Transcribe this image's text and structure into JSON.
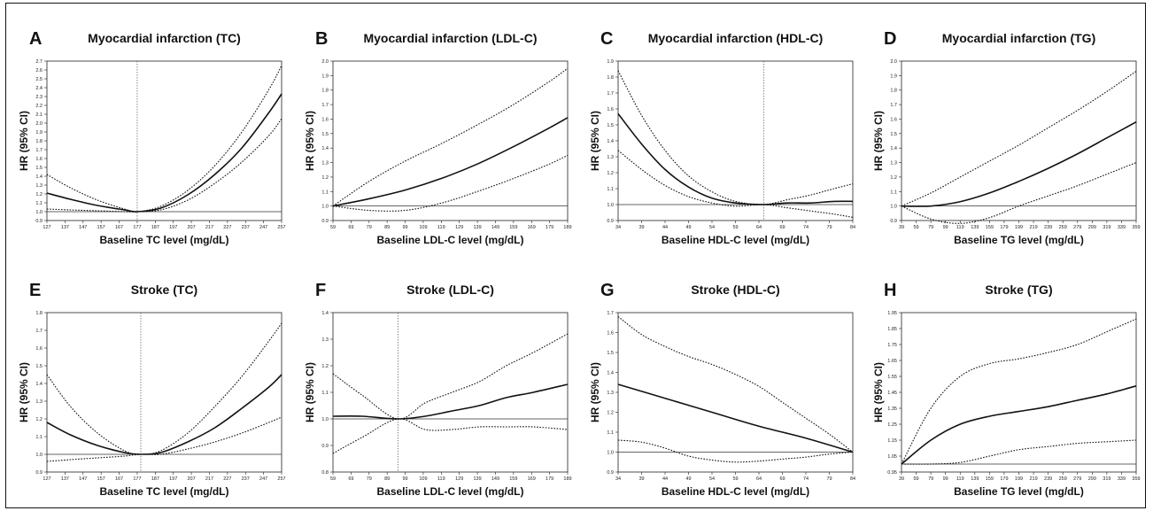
{
  "figure": {
    "panels": [
      {
        "letter": "A",
        "title": "Myocardial infarction (TC)"
      },
      {
        "letter": "B",
        "title": "Myocardial infarction (LDL-C)"
      },
      {
        "letter": "C",
        "title": "Myocardial infarction (HDL-C)"
      },
      {
        "letter": "D",
        "title": "Myocardial infarction (TG)"
      },
      {
        "letter": "E",
        "title": "Stroke (TC)"
      },
      {
        "letter": "F",
        "title": "Stroke (LDL-C)"
      },
      {
        "letter": "G",
        "title": "Stroke (HDL-C)"
      },
      {
        "letter": "H",
        "title": "Stroke (TG)"
      }
    ]
  },
  "chart_data": [
    {
      "type": "line",
      "letter": "A",
      "title": "Myocardial infarction (TC)",
      "xlabel": "Baseline TC level (mg/dL)",
      "ylabel": "HR (95% CI)",
      "xticks": [
        127,
        137,
        147,
        157,
        167,
        177,
        187,
        197,
        207,
        217,
        227,
        237,
        247,
        257
      ],
      "yticks": [
        0.9,
        1.0,
        1.1,
        1.2,
        1.3,
        1.4,
        1.5,
        1.6,
        1.7,
        1.8,
        1.9,
        2.0,
        2.1,
        2.2,
        2.3,
        2.4,
        2.5,
        2.6,
        2.7
      ],
      "xlim": [
        127,
        257
      ],
      "ylim": [
        0.9,
        2.7
      ],
      "reference_line": 1.0,
      "reference_x": 177,
      "series": [
        {
          "role": "estimate",
          "x": [
            127,
            140,
            155,
            170,
            177,
            190,
            205,
            220,
            235,
            250,
            257
          ],
          "y": [
            1.21,
            1.14,
            1.07,
            1.02,
            1.0,
            1.04,
            1.19,
            1.42,
            1.72,
            2.12,
            2.33
          ]
        },
        {
          "role": "upper",
          "x": [
            127,
            140,
            155,
            170,
            177,
            190,
            205,
            220,
            235,
            250,
            257
          ],
          "y": [
            1.42,
            1.27,
            1.13,
            1.03,
            1.0,
            1.06,
            1.24,
            1.52,
            1.9,
            2.38,
            2.65
          ]
        },
        {
          "role": "lower",
          "x": [
            127,
            140,
            155,
            170,
            177,
            190,
            205,
            220,
            235,
            250,
            257
          ],
          "y": [
            1.03,
            1.02,
            1.01,
            1.0,
            1.0,
            1.02,
            1.13,
            1.32,
            1.56,
            1.86,
            2.05
          ]
        }
      ]
    },
    {
      "type": "line",
      "letter": "B",
      "title": "Myocardial infarction (LDL-C)",
      "xlabel": "Baseline LDL-C level (mg/dL)",
      "ylabel": "HR (95% CI)",
      "xticks": [
        59,
        69,
        79,
        89,
        99,
        109,
        119,
        129,
        139,
        149,
        159,
        169,
        179,
        189
      ],
      "yticks": [
        0.9,
        1.0,
        1.1,
        1.2,
        1.3,
        1.4,
        1.5,
        1.6,
        1.7,
        1.8,
        1.9,
        2.0
      ],
      "xlim": [
        59,
        189
      ],
      "ylim": [
        0.9,
        2.0
      ],
      "reference_line": 1.0,
      "series": [
        {
          "role": "estimate",
          "x": [
            59,
            79,
            99,
            119,
            139,
            159,
            179,
            189
          ],
          "y": [
            1.0,
            1.05,
            1.11,
            1.19,
            1.29,
            1.41,
            1.54,
            1.61
          ]
        },
        {
          "role": "upper",
          "x": [
            59,
            79,
            99,
            119,
            139,
            159,
            179,
            189
          ],
          "y": [
            1.0,
            1.17,
            1.31,
            1.43,
            1.56,
            1.7,
            1.86,
            1.95
          ]
        },
        {
          "role": "lower",
          "x": [
            59,
            79,
            99,
            119,
            139,
            159,
            179,
            189
          ],
          "y": [
            1.0,
            0.97,
            0.97,
            1.02,
            1.1,
            1.19,
            1.29,
            1.35
          ]
        }
      ]
    },
    {
      "type": "line",
      "letter": "C",
      "title": "Myocardial infarction (HDL-C)",
      "xlabel": "Baseline HDL-C level (mg/dL)",
      "ylabel": "HR (95% CI)",
      "xticks": [
        34,
        39,
        44,
        49,
        54,
        59,
        64,
        69,
        74,
        79,
        84
      ],
      "yticks": [
        0.9,
        1.0,
        1.1,
        1.2,
        1.3,
        1.4,
        1.5,
        1.6,
        1.7,
        1.8,
        1.9
      ],
      "xlim": [
        34,
        84
      ],
      "ylim": [
        0.9,
        1.9
      ],
      "reference_line": 1.0,
      "reference_x": 65,
      "series": [
        {
          "role": "estimate",
          "x": [
            34,
            39,
            44,
            49,
            54,
            59,
            65,
            70,
            75,
            80,
            84
          ],
          "y": [
            1.57,
            1.38,
            1.22,
            1.11,
            1.04,
            1.01,
            1.0,
            1.01,
            1.01,
            1.02,
            1.02
          ]
        },
        {
          "role": "upper",
          "x": [
            34,
            39,
            44,
            49,
            54,
            59,
            65,
            70,
            75,
            80,
            84
          ],
          "y": [
            1.84,
            1.56,
            1.34,
            1.18,
            1.08,
            1.02,
            1.0,
            1.03,
            1.06,
            1.1,
            1.13
          ]
        },
        {
          "role": "lower",
          "x": [
            34,
            39,
            44,
            49,
            54,
            59,
            65,
            70,
            75,
            80,
            84
          ],
          "y": [
            1.34,
            1.22,
            1.12,
            1.05,
            1.01,
            0.99,
            1.0,
            0.98,
            0.96,
            0.94,
            0.92
          ]
        }
      ]
    },
    {
      "type": "line",
      "letter": "D",
      "title": "Myocardial infarction (TG)",
      "xlabel": "Baseline TG level (mg/dL)",
      "ylabel": "HR (95% CI)",
      "xticks": [
        39,
        59,
        79,
        99,
        119,
        139,
        159,
        179,
        199,
        219,
        239,
        259,
        279,
        299,
        319,
        339,
        359
      ],
      "yticks": [
        0.9,
        1.0,
        1.1,
        1.2,
        1.3,
        1.4,
        1.5,
        1.6,
        1.7,
        1.8,
        1.9,
        2.0
      ],
      "xlim": [
        39,
        359
      ],
      "ylim": [
        0.9,
        2.0
      ],
      "reference_line": 1.0,
      "series": [
        {
          "role": "estimate",
          "x": [
            39,
            79,
            119,
            159,
            199,
            239,
            279,
            319,
            359
          ],
          "y": [
            1.0,
            1.0,
            1.03,
            1.09,
            1.17,
            1.26,
            1.36,
            1.47,
            1.58
          ]
        },
        {
          "role": "upper",
          "x": [
            39,
            79,
            119,
            159,
            199,
            239,
            279,
            319,
            359
          ],
          "y": [
            1.0,
            1.09,
            1.2,
            1.31,
            1.42,
            1.54,
            1.66,
            1.79,
            1.93
          ]
        },
        {
          "role": "lower",
          "x": [
            39,
            79,
            119,
            159,
            199,
            239,
            279,
            319,
            359
          ],
          "y": [
            1.0,
            0.91,
            0.88,
            0.92,
            1.0,
            1.07,
            1.14,
            1.22,
            1.3
          ]
        }
      ]
    },
    {
      "type": "line",
      "letter": "E",
      "title": "Stroke (TC)",
      "xlabel": "Baseline TC level (mg/dL)",
      "ylabel": "HR (95% CI)",
      "xticks": [
        127,
        137,
        147,
        157,
        167,
        177,
        187,
        197,
        207,
        217,
        227,
        237,
        247,
        257
      ],
      "yticks": [
        0.9,
        1.0,
        1.1,
        1.2,
        1.3,
        1.4,
        1.5,
        1.6,
        1.7,
        1.8
      ],
      "xlim": [
        127,
        257
      ],
      "ylim": [
        0.9,
        1.8
      ],
      "reference_line": 1.0,
      "reference_x": 179,
      "series": [
        {
          "role": "estimate",
          "x": [
            127,
            140,
            155,
            170,
            179,
            190,
            205,
            220,
            235,
            250,
            257
          ],
          "y": [
            1.18,
            1.11,
            1.05,
            1.01,
            1.0,
            1.01,
            1.07,
            1.15,
            1.26,
            1.38,
            1.45
          ]
        },
        {
          "role": "upper",
          "x": [
            127,
            140,
            155,
            170,
            179,
            190,
            205,
            220,
            235,
            250,
            257
          ],
          "y": [
            1.45,
            1.27,
            1.12,
            1.02,
            1.0,
            1.02,
            1.12,
            1.27,
            1.44,
            1.64,
            1.74
          ]
        },
        {
          "role": "lower",
          "x": [
            127,
            140,
            155,
            170,
            179,
            190,
            205,
            220,
            235,
            250,
            257
          ],
          "y": [
            0.96,
            0.97,
            0.98,
            0.99,
            1.0,
            1.0,
            1.03,
            1.07,
            1.12,
            1.18,
            1.21
          ]
        }
      ]
    },
    {
      "type": "line",
      "letter": "F",
      "title": "Stroke (LDL-C)",
      "xlabel": "Baseline LDL-C level (mg/dL)",
      "ylabel": "HR (95% CI)",
      "xticks": [
        59,
        69,
        79,
        89,
        99,
        109,
        119,
        129,
        139,
        149,
        159,
        169,
        179,
        189
      ],
      "yticks": [
        0.8,
        0.9,
        1.0,
        1.1,
        1.2,
        1.3,
        1.4
      ],
      "xlim": [
        59,
        189
      ],
      "ylim": [
        0.8,
        1.4
      ],
      "reference_line": 1.0,
      "reference_x": 95,
      "series": [
        {
          "role": "estimate",
          "x": [
            59,
            75,
            95,
            110,
            125,
            140,
            155,
            170,
            189
          ],
          "y": [
            1.01,
            1.01,
            1.0,
            1.01,
            1.03,
            1.05,
            1.08,
            1.1,
            1.13
          ]
        },
        {
          "role": "upper",
          "x": [
            59,
            75,
            95,
            110,
            125,
            140,
            155,
            170,
            189
          ],
          "y": [
            1.17,
            1.09,
            1.0,
            1.06,
            1.1,
            1.14,
            1.2,
            1.25,
            1.32
          ]
        },
        {
          "role": "lower",
          "x": [
            59,
            75,
            95,
            110,
            125,
            140,
            155,
            170,
            189
          ],
          "y": [
            0.87,
            0.93,
            1.0,
            0.96,
            0.96,
            0.97,
            0.97,
            0.97,
            0.96
          ]
        }
      ]
    },
    {
      "type": "line",
      "letter": "G",
      "title": "Stroke (HDL-C)",
      "xlabel": "Baseline HDL-C level (mg/dL)",
      "ylabel": "HR (95% CI)",
      "xticks": [
        34,
        39,
        44,
        49,
        54,
        59,
        64,
        69,
        74,
        79,
        84
      ],
      "yticks": [
        0.9,
        1.0,
        1.1,
        1.2,
        1.3,
        1.4,
        1.5,
        1.6,
        1.7
      ],
      "xlim": [
        34,
        84
      ],
      "ylim": [
        0.9,
        1.7
      ],
      "reference_line": 1.0,
      "reference_x": 84,
      "series": [
        {
          "role": "estimate",
          "x": [
            34,
            44,
            54,
            64,
            74,
            84
          ],
          "y": [
            1.34,
            1.27,
            1.2,
            1.13,
            1.07,
            1.0
          ]
        },
        {
          "role": "upper",
          "x": [
            34,
            39,
            44,
            49,
            54,
            59,
            64,
            69,
            74,
            79,
            84
          ],
          "y": [
            1.68,
            1.59,
            1.53,
            1.48,
            1.44,
            1.39,
            1.33,
            1.25,
            1.17,
            1.09,
            1.0
          ]
        },
        {
          "role": "lower",
          "x": [
            34,
            39,
            44,
            49,
            54,
            59,
            64,
            69,
            74,
            79,
            84
          ],
          "y": [
            1.06,
            1.05,
            1.02,
            0.98,
            0.96,
            0.95,
            0.955,
            0.965,
            0.975,
            0.99,
            1.0
          ]
        }
      ]
    },
    {
      "type": "line",
      "letter": "H",
      "title": "Stroke (TG)",
      "xlabel": "Baseline TG level (mg/dL)",
      "ylabel": "HR (95% CI)",
      "xticks": [
        39,
        59,
        79,
        99,
        119,
        139,
        159,
        179,
        199,
        219,
        239,
        259,
        279,
        299,
        319,
        339,
        359
      ],
      "yticks": [
        0.95,
        1.05,
        1.15,
        1.25,
        1.35,
        1.45,
        1.55,
        1.65,
        1.75,
        1.85,
        1.95
      ],
      "xlim": [
        39,
        359
      ],
      "ylim": [
        0.95,
        1.95
      ],
      "reference_line": 1.0,
      "series": [
        {
          "role": "estimate",
          "x": [
            39,
            79,
            119,
            159,
            199,
            239,
            279,
            319,
            359
          ],
          "y": [
            1.0,
            1.15,
            1.25,
            1.3,
            1.33,
            1.36,
            1.4,
            1.44,
            1.49
          ]
        },
        {
          "role": "upper",
          "x": [
            39,
            79,
            119,
            159,
            199,
            239,
            279,
            319,
            359
          ],
          "y": [
            1.0,
            1.35,
            1.55,
            1.63,
            1.66,
            1.7,
            1.75,
            1.83,
            1.91
          ]
        },
        {
          "role": "lower",
          "x": [
            39,
            79,
            119,
            159,
            199,
            239,
            279,
            319,
            359
          ],
          "y": [
            1.0,
            1.0,
            1.01,
            1.05,
            1.09,
            1.11,
            1.13,
            1.14,
            1.15
          ]
        }
      ]
    }
  ]
}
